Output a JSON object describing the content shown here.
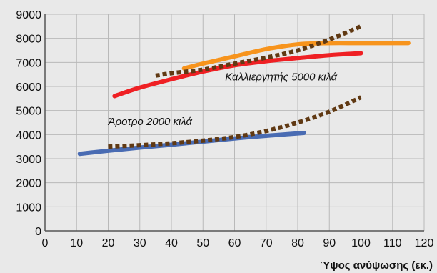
{
  "chart_data": {
    "type": "line",
    "xlabel": "Ύψος ανύψωσης (εκ.)",
    "ylabel": "",
    "xlim": [
      0,
      120
    ],
    "ylim": [
      0,
      9000
    ],
    "xticks": [
      "0",
      "10",
      "20",
      "30",
      "40",
      "50",
      "60",
      "70",
      "80",
      "90",
      "100",
      "110",
      "120"
    ],
    "yticks": [
      "0",
      "1000",
      "2000",
      "3000",
      "4000",
      "5000",
      "6000",
      "7000",
      "8000",
      "9000"
    ],
    "grid": true,
    "series": [
      {
        "color": "#ef2024",
        "style": "solid",
        "x": [
          22,
          30,
          40,
          50,
          60,
          70,
          80,
          90,
          100
        ],
        "y": [
          5600,
          5950,
          6300,
          6620,
          6880,
          7050,
          7180,
          7300,
          7380
        ]
      },
      {
        "color": "#f7941d",
        "style": "solid",
        "x": [
          44,
          50,
          60,
          70,
          80,
          90,
          100,
          115
        ],
        "y": [
          6750,
          6950,
          7250,
          7550,
          7750,
          7800,
          7800,
          7800
        ]
      },
      {
        "color": "#603913",
        "style": "dotted",
        "x": [
          35,
          40,
          50,
          60,
          70,
          80,
          90,
          100
        ],
        "y": [
          6450,
          6550,
          6700,
          6950,
          7200,
          7500,
          7950,
          8500
        ]
      },
      {
        "color": "#4a6cb3",
        "style": "solid",
        "x": [
          11,
          20,
          30,
          40,
          50,
          60,
          70,
          82
        ],
        "y": [
          3200,
          3330,
          3460,
          3580,
          3710,
          3840,
          3950,
          4070
        ]
      },
      {
        "color": "#603913",
        "style": "dotted",
        "x": [
          20,
          30,
          40,
          50,
          60,
          70,
          80,
          90,
          100
        ],
        "y": [
          3500,
          3560,
          3640,
          3750,
          3900,
          4150,
          4500,
          4950,
          5550
        ]
      }
    ],
    "annotations": [
      {
        "text": "Καλλιεργητής 5000 κιλά",
        "x": 57,
        "y": 6250
      },
      {
        "text": "Άροτρο 2000 κιλά",
        "x": 20,
        "y": 4400
      }
    ]
  }
}
